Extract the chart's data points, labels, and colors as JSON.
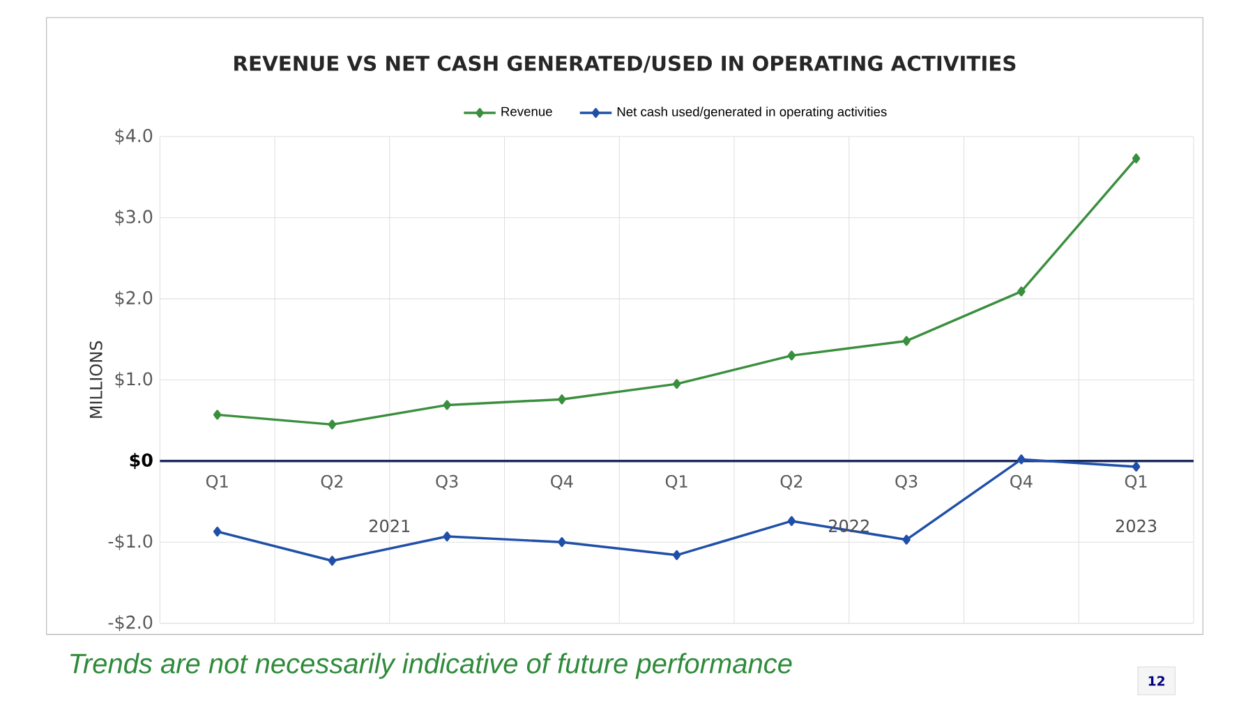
{
  "chart_data": {
    "type": "line",
    "title": "REVENUE VS NET CASH GENERATED/USED IN OPERATING ACTIVITIES",
    "ylabel": "MILLIONS",
    "categories": [
      "Q1",
      "Q2",
      "Q3",
      "Q4",
      "Q1",
      "Q2",
      "Q3",
      "Q4",
      "Q1"
    ],
    "series": [
      {
        "name": "Revenue",
        "color": "#3a8f3e",
        "values": [
          0.57,
          0.45,
          0.69,
          0.76,
          0.95,
          1.3,
          1.48,
          2.09,
          3.73
        ]
      },
      {
        "name": "Net cash used/generated in operating activities",
        "color": "#1f4fa8",
        "values": [
          -0.87,
          -1.23,
          -0.93,
          -1.0,
          -1.16,
          -0.74,
          -0.97,
          0.02,
          -0.07
        ]
      }
    ],
    "ylim": [
      -2,
      4
    ],
    "yticks": [
      {
        "value": -2,
        "label": "-$2.0"
      },
      {
        "value": -1,
        "label": "-$1.0"
      },
      {
        "value": 0,
        "label": "$0"
      },
      {
        "value": 1,
        "label": "$1.0"
      },
      {
        "value": 2,
        "label": "$2.0"
      },
      {
        "value": 3,
        "label": "$3.0"
      },
      {
        "value": 4,
        "label": "$4.0"
      }
    ],
    "annotations": [
      "2021",
      "2022",
      "2023",
      "Trends are not necessarily indicative of future performance",
      "12"
    ],
    "grid": true,
    "legend": "top",
    "marker": "diamond",
    "line_style": "solid"
  }
}
